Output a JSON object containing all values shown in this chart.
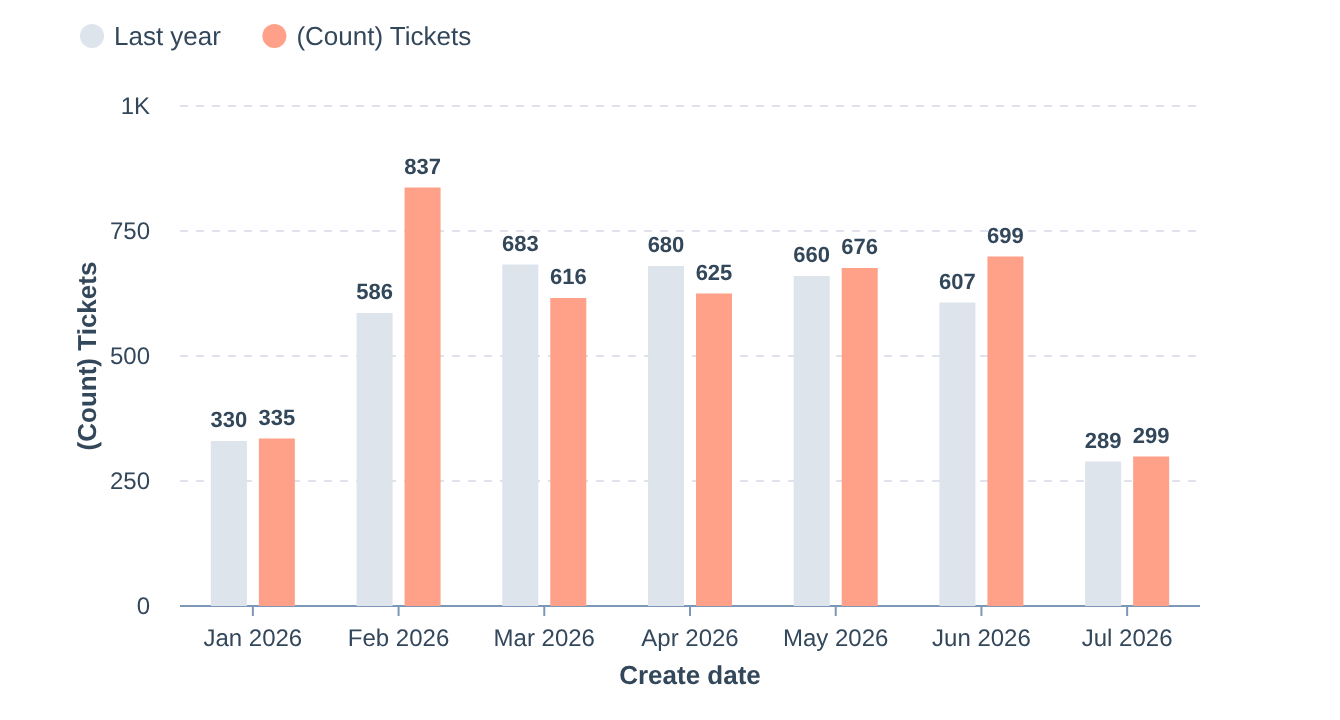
{
  "chart_data": {
    "type": "bar",
    "xlabel": "Create date",
    "ylabel": "(Count) Tickets",
    "categories": [
      "Jan 2026",
      "Feb 2026",
      "Mar 2026",
      "Apr 2026",
      "May 2026",
      "Jun 2026",
      "Jul 2026"
    ],
    "series": [
      {
        "name": "Last year",
        "color": "#dde4ec",
        "values": [
          330,
          586,
          683,
          680,
          660,
          607,
          289
        ]
      },
      {
        "name": "(Count) Tickets",
        "color": "#ffa088",
        "values": [
          335,
          837,
          616,
          625,
          676,
          699,
          299
        ]
      }
    ],
    "ylim": [
      0,
      1000
    ],
    "yticks": [
      0,
      250,
      500,
      750,
      {
        "value": 1000,
        "label": "1K"
      }
    ],
    "grid": "y",
    "legend": "top left",
    "data_labels": true
  }
}
